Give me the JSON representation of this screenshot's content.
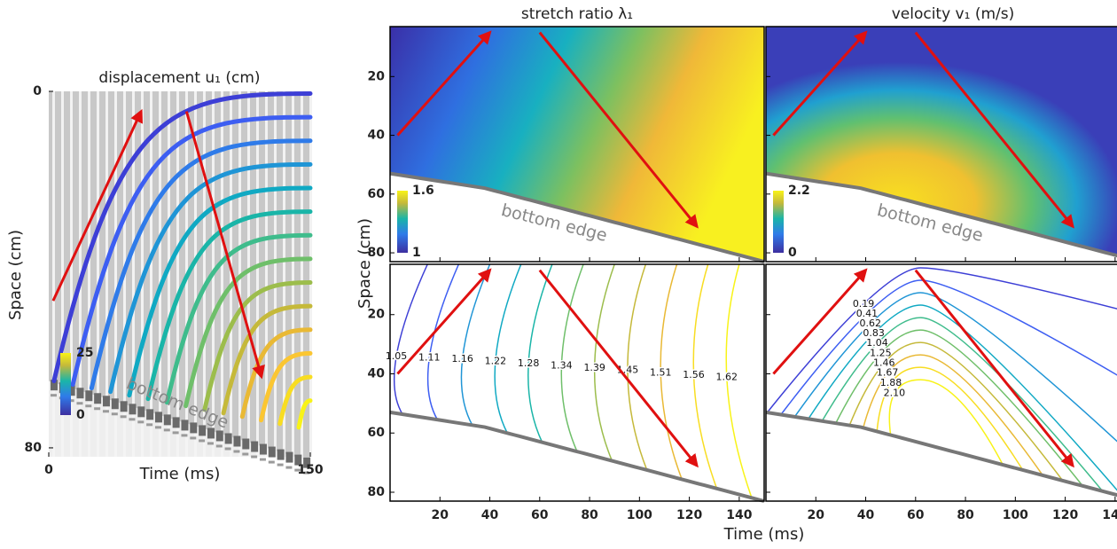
{
  "displacement": {
    "title": "displacement u₁ (cm)",
    "xlabel": "Time (ms)",
    "ylabel": "Space (cm)",
    "xlim": [
      0,
      150
    ],
    "ylim": [
      0,
      82
    ],
    "xticks": [
      0,
      150
    ],
    "yticks": [
      0,
      80
    ],
    "annotation": "bottom edge",
    "colorbar_lim": [
      0,
      25
    ],
    "colorbar_ticks": [
      0,
      25
    ],
    "curve_colors": [
      "#3d3fd6",
      "#3d5ef2",
      "#2f7be9",
      "#1f95d6",
      "#10a9c3",
      "#1ab5a8",
      "#3fbc8c",
      "#6fbf6a",
      "#9cbd4c",
      "#c5b93a",
      "#e9b935",
      "#fbc632",
      "#f8dd22",
      "#f8f318"
    ]
  },
  "fields": {
    "xlabel": "Time (ms)",
    "ylabel": "Space (cm)",
    "xlim": [
      0,
      150
    ],
    "ylim": [
      3,
      83
    ],
    "xticks": [
      20,
      40,
      60,
      80,
      100,
      120,
      140
    ],
    "yticks": [
      20,
      40,
      60,
      80
    ],
    "stretch": {
      "title": "stretch ratio λ₁",
      "annotation": "bottom edge",
      "colorbar_ticks": [
        1,
        1.6
      ],
      "contour_levels": [
        1.05,
        1.11,
        1.16,
        1.22,
        1.28,
        1.34,
        1.39,
        1.45,
        1.51,
        1.56,
        1.62
      ]
    },
    "velocity": {
      "title": "velocity v₁ (m/s)",
      "annotation": "bottom edge",
      "colorbar_ticks": [
        0,
        2.2
      ],
      "contour_levels": [
        0.19,
        0.41,
        0.62,
        0.83,
        1.04,
        1.25,
        1.46,
        1.67,
        1.88,
        2.1
      ],
      "contour_labels": [
        "0.19",
        "0.41",
        "0.62",
        "0.83",
        "1.04",
        "1.25",
        "1.46",
        "1.67",
        "1.88",
        "2.10"
      ]
    }
  }
}
